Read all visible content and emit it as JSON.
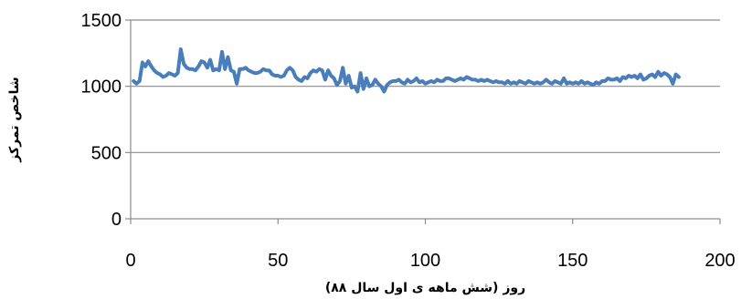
{
  "chart_data": {
    "type": "line",
    "title": "",
    "xlabel": "روز (شش ماهه ی اول سال ۸۸)",
    "ylabel": "شاخص تمرکز",
    "xlim": [
      0,
      200
    ],
    "ylim": [
      0,
      1500
    ],
    "x_ticks": [
      "0",
      "50",
      "100",
      "150",
      "200"
    ],
    "y_ticks": [
      "0",
      "500",
      "1000",
      "1500"
    ],
    "grid": "horizontal",
    "legend": "none",
    "colors": {
      "series": "#4a7ebb",
      "grid": "#8c8c8c",
      "axis": "#8c8c8c"
    },
    "series": [
      {
        "values": [
          [
            1,
            1040
          ],
          [
            2,
            1020
          ],
          [
            3,
            1040
          ],
          [
            4,
            1180
          ],
          [
            5,
            1150
          ],
          [
            6,
            1190
          ],
          [
            7,
            1150
          ],
          [
            8,
            1120
          ],
          [
            9,
            1100
          ],
          [
            10,
            1090
          ],
          [
            11,
            1070
          ],
          [
            12,
            1080
          ],
          [
            13,
            1100
          ],
          [
            14,
            1090
          ],
          [
            15,
            1080
          ],
          [
            16,
            1100
          ],
          [
            17,
            1280
          ],
          [
            18,
            1170
          ],
          [
            19,
            1140
          ],
          [
            20,
            1130
          ],
          [
            21,
            1130
          ],
          [
            22,
            1120
          ],
          [
            23,
            1150
          ],
          [
            24,
            1190
          ],
          [
            25,
            1180
          ],
          [
            26,
            1140
          ],
          [
            27,
            1200
          ],
          [
            28,
            1120
          ],
          [
            29,
            1130
          ],
          [
            30,
            1120
          ],
          [
            31,
            1260
          ],
          [
            32,
            1130
          ],
          [
            33,
            1220
          ],
          [
            34,
            1120
          ],
          [
            35,
            1110
          ],
          [
            36,
            1020
          ],
          [
            37,
            1130
          ],
          [
            38,
            1130
          ],
          [
            39,
            1140
          ],
          [
            40,
            1120
          ],
          [
            41,
            1110
          ],
          [
            42,
            1100
          ],
          [
            43,
            1100
          ],
          [
            44,
            1110
          ],
          [
            45,
            1130
          ],
          [
            46,
            1120
          ],
          [
            47,
            1120
          ],
          [
            48,
            1090
          ],
          [
            49,
            1080
          ],
          [
            50,
            1080
          ],
          [
            51,
            1070
          ],
          [
            52,
            1080
          ],
          [
            53,
            1120
          ],
          [
            54,
            1140
          ],
          [
            55,
            1120
          ],
          [
            56,
            1070
          ],
          [
            57,
            1050
          ],
          [
            58,
            1040
          ],
          [
            59,
            1070
          ],
          [
            60,
            1060
          ],
          [
            61,
            1100
          ],
          [
            62,
            1120
          ],
          [
            63,
            1110
          ],
          [
            64,
            1130
          ],
          [
            65,
            1120
          ],
          [
            66,
            1050
          ],
          [
            67,
            1120
          ],
          [
            68,
            1080
          ],
          [
            69,
            1060
          ],
          [
            70,
            1010
          ],
          [
            71,
            1040
          ],
          [
            72,
            1140
          ],
          [
            73,
            1020
          ],
          [
            74,
            1080
          ],
          [
            75,
            990
          ],
          [
            76,
            1000
          ],
          [
            77,
            960
          ],
          [
            78,
            1100
          ],
          [
            79,
            980
          ],
          [
            80,
            1060
          ],
          [
            81,
            1000
          ],
          [
            82,
            1010
          ],
          [
            83,
            1050
          ],
          [
            84,
            1020
          ],
          [
            85,
            1000
          ],
          [
            86,
            960
          ],
          [
            87,
            1010
          ],
          [
            88,
            1030
          ],
          [
            89,
            1040
          ],
          [
            90,
            1040
          ],
          [
            91,
            1050
          ],
          [
            92,
            1030
          ],
          [
            93,
            1020
          ],
          [
            94,
            1050
          ],
          [
            95,
            1030
          ],
          [
            96,
            1040
          ],
          [
            97,
            1060
          ],
          [
            98,
            1030
          ],
          [
            99,
            1040
          ],
          [
            100,
            1020
          ],
          [
            101,
            1030
          ],
          [
            102,
            1040
          ],
          [
            103,
            1030
          ],
          [
            104,
            1050
          ],
          [
            105,
            1040
          ],
          [
            106,
            1040
          ],
          [
            107,
            1060
          ],
          [
            108,
            1060
          ],
          [
            109,
            1050
          ],
          [
            110,
            1040
          ],
          [
            111,
            1050
          ],
          [
            112,
            1060
          ],
          [
            113,
            1050
          ],
          [
            114,
            1070
          ],
          [
            115,
            1060
          ],
          [
            116,
            1050
          ],
          [
            117,
            1050
          ],
          [
            118,
            1040
          ],
          [
            119,
            1050
          ],
          [
            120,
            1040
          ],
          [
            121,
            1050
          ],
          [
            122,
            1040
          ],
          [
            123,
            1030
          ],
          [
            124,
            1040
          ],
          [
            125,
            1030
          ],
          [
            126,
            1030
          ],
          [
            127,
            1020
          ],
          [
            128,
            1040
          ],
          [
            129,
            1020
          ],
          [
            130,
            1030
          ],
          [
            131,
            1020
          ],
          [
            132,
            1040
          ],
          [
            133,
            1030
          ],
          [
            134,
            1020
          ],
          [
            135,
            1040
          ],
          [
            136,
            1030
          ],
          [
            137,
            1020
          ],
          [
            138,
            1030
          ],
          [
            139,
            1020
          ],
          [
            140,
            1030
          ],
          [
            141,
            1050
          ],
          [
            142,
            1030
          ],
          [
            143,
            1020
          ],
          [
            144,
            1040
          ],
          [
            145,
            1030
          ],
          [
            146,
            1020
          ],
          [
            147,
            1060
          ],
          [
            148,
            1020
          ],
          [
            149,
            1030
          ],
          [
            150,
            1020
          ],
          [
            151,
            1030
          ],
          [
            152,
            1020
          ],
          [
            153,
            1040
          ],
          [
            154,
            1020
          ],
          [
            155,
            1030
          ],
          [
            156,
            1020
          ],
          [
            157,
            1010
          ],
          [
            158,
            1030
          ],
          [
            159,
            1020
          ],
          [
            160,
            1040
          ],
          [
            161,
            1040
          ],
          [
            162,
            1060
          ],
          [
            163,
            1050
          ],
          [
            164,
            1050
          ],
          [
            165,
            1060
          ],
          [
            166,
            1040
          ],
          [
            167,
            1070
          ],
          [
            168,
            1060
          ],
          [
            169,
            1080
          ],
          [
            170,
            1070
          ],
          [
            171,
            1080
          ],
          [
            172,
            1060
          ],
          [
            173,
            1090
          ],
          [
            174,
            1050
          ],
          [
            175,
            1060
          ],
          [
            176,
            1080
          ],
          [
            177,
            1090
          ],
          [
            178,
            1070
          ],
          [
            179,
            1110
          ],
          [
            180,
            1080
          ],
          [
            181,
            1100
          ],
          [
            182,
            1090
          ],
          [
            183,
            1070
          ],
          [
            184,
            1020
          ],
          [
            185,
            1090
          ],
          [
            186,
            1070
          ]
        ]
      }
    ]
  }
}
